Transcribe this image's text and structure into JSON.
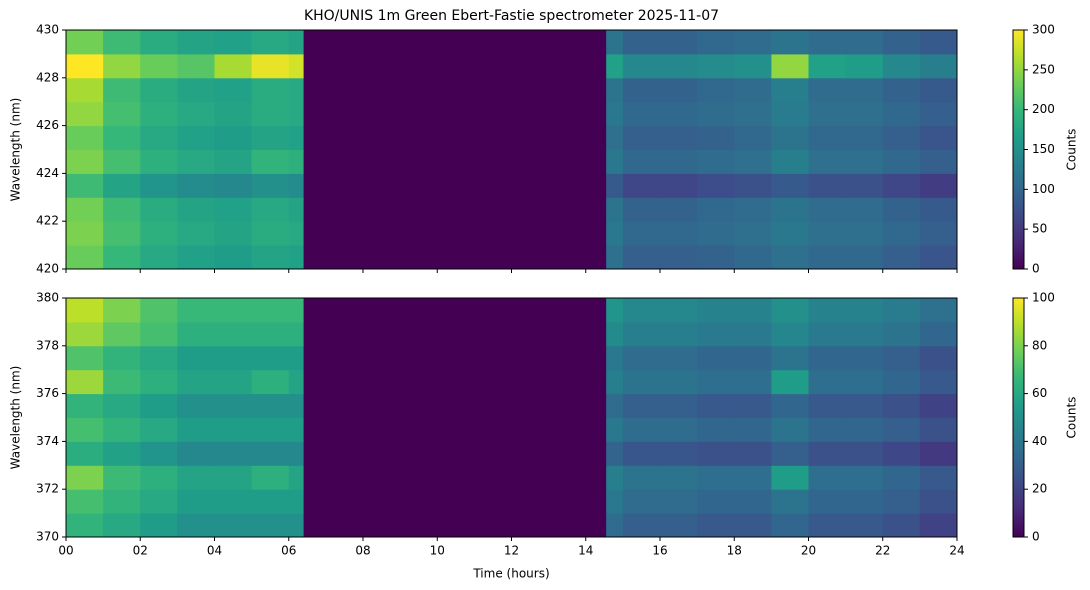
{
  "chart_data": [
    {
      "type": "heatmap",
      "title": "KHO/UNIS 1m Green Ebert-Fastie spectrometer 2025-11-07",
      "y_label": "Wavelength (nm)",
      "x_bins": [
        0,
        1,
        2,
        3,
        4,
        5,
        6,
        6.4,
        14.55,
        15,
        16,
        17,
        18,
        19,
        20,
        21,
        22,
        23,
        24
      ],
      "y_bins": [
        420,
        421,
        422,
        423,
        424,
        425,
        426,
        427,
        428,
        429,
        430
      ],
      "z": [
        [
          230,
          200,
          180,
          170,
          165,
          175,
          170,
          0,
          110,
          90,
          90,
          95,
          100,
          110,
          100,
          100,
          90,
          80
        ],
        [
          240,
          210,
          190,
          180,
          175,
          185,
          180,
          0,
          120,
          100,
          100,
          105,
          110,
          120,
          110,
          110,
          100,
          90
        ],
        [
          235,
          205,
          185,
          175,
          170,
          180,
          175,
          0,
          115,
          95,
          95,
          100,
          105,
          115,
          105,
          105,
          95,
          85
        ],
        [
          205,
          175,
          155,
          145,
          140,
          150,
          145,
          0,
          85,
          65,
          65,
          70,
          75,
          85,
          75,
          75,
          65,
          55
        ],
        [
          240,
          210,
          190,
          180,
          175,
          195,
          190,
          0,
          120,
          100,
          100,
          105,
          110,
          130,
          110,
          110,
          100,
          90
        ],
        [
          230,
          200,
          180,
          170,
          165,
          175,
          170,
          0,
          110,
          90,
          90,
          95,
          100,
          115,
          100,
          100,
          90,
          80
        ],
        [
          250,
          210,
          190,
          180,
          175,
          185,
          180,
          0,
          120,
          100,
          100,
          105,
          110,
          125,
          110,
          110,
          100,
          90
        ],
        [
          260,
          205,
          185,
          175,
          170,
          185,
          180,
          0,
          115,
          95,
          95,
          100,
          105,
          130,
          105,
          105,
          95,
          85
        ],
        [
          300,
          250,
          230,
          220,
          260,
          290,
          280,
          0,
          170,
          140,
          140,
          145,
          150,
          250,
          170,
          165,
          140,
          130
        ],
        [
          235,
          205,
          185,
          175,
          170,
          180,
          175,
          0,
          115,
          95,
          95,
          100,
          105,
          115,
          105,
          105,
          95,
          85
        ]
      ],
      "xlim": [
        0,
        24
      ],
      "xticks": [
        0,
        2,
        4,
        6,
        8,
        10,
        12,
        14,
        16,
        18,
        20,
        22,
        24
      ],
      "show_xticklabels": false,
      "ylim": [
        420,
        430
      ],
      "yticks": [
        420,
        422,
        424,
        426,
        428,
        430
      ],
      "colormap": [
        "#440154",
        "#482878",
        "#3e4989",
        "#31688e",
        "#26828e",
        "#1f9e89",
        "#35b779",
        "#6ece58",
        "#b5de2b",
        "#fde725"
      ],
      "clim": [
        0,
        300
      ],
      "cticks": [
        0,
        50,
        100,
        150,
        200,
        250,
        300
      ],
      "colorbar_label": "Counts"
    },
    {
      "type": "heatmap",
      "y_label": "Wavelength (nm)",
      "x_label": "Time (hours)",
      "x_bins": [
        0,
        1,
        2,
        3,
        4,
        5,
        6,
        6.4,
        14.55,
        15,
        16,
        17,
        18,
        19,
        20,
        21,
        22,
        23,
        24
      ],
      "y_bins": [
        370,
        371,
        372,
        373,
        374,
        375,
        376,
        377,
        378,
        379,
        380
      ],
      "z": [
        [
          65,
          60,
          55,
          50,
          50,
          50,
          50,
          0,
          35,
          30,
          30,
          28,
          28,
          33,
          28,
          28,
          25,
          20
        ],
        [
          70,
          65,
          60,
          55,
          55,
          55,
          55,
          0,
          40,
          35,
          35,
          33,
          33,
          38,
          33,
          33,
          30,
          25
        ],
        [
          80,
          68,
          63,
          58,
          58,
          63,
          58,
          0,
          43,
          38,
          38,
          36,
          36,
          55,
          36,
          36,
          33,
          28
        ],
        [
          62,
          57,
          52,
          47,
          47,
          47,
          47,
          0,
          32,
          27,
          27,
          25,
          25,
          30,
          25,
          25,
          22,
          17
        ],
        [
          70,
          65,
          60,
          55,
          55,
          55,
          55,
          0,
          40,
          35,
          35,
          33,
          33,
          38,
          33,
          33,
          30,
          25
        ],
        [
          65,
          60,
          55,
          50,
          50,
          50,
          50,
          0,
          35,
          30,
          30,
          28,
          28,
          33,
          28,
          28,
          25,
          20
        ],
        [
          85,
          68,
          63,
          58,
          58,
          63,
          58,
          0,
          43,
          38,
          38,
          36,
          36,
          55,
          36,
          36,
          33,
          28
        ],
        [
          72,
          65,
          60,
          55,
          55,
          55,
          55,
          0,
          40,
          35,
          35,
          33,
          33,
          38,
          33,
          33,
          30,
          25
        ],
        [
          85,
          75,
          70,
          63,
          63,
          63,
          63,
          0,
          48,
          43,
          43,
          41,
          41,
          46,
          41,
          41,
          38,
          33
        ],
        [
          90,
          80,
          72,
          67,
          67,
          67,
          67,
          0,
          52,
          47,
          47,
          45,
          45,
          50,
          45,
          45,
          42,
          37
        ]
      ],
      "xlim": [
        0,
        24
      ],
      "xticks": [
        {
          "value": 0,
          "label": "00"
        },
        {
          "value": 2,
          "label": "02"
        },
        {
          "value": 4,
          "label": "04"
        },
        {
          "value": 6,
          "label": "06"
        },
        {
          "value": 8,
          "label": "08"
        },
        {
          "value": 10,
          "label": "10"
        },
        {
          "value": 12,
          "label": "12"
        },
        {
          "value": 14,
          "label": "14"
        },
        {
          "value": 16,
          "label": "16"
        },
        {
          "value": 18,
          "label": "18"
        },
        {
          "value": 20,
          "label": "20"
        },
        {
          "value": 22,
          "label": "22"
        },
        {
          "value": 24,
          "label": "24"
        }
      ],
      "show_xticklabels": true,
      "ylim": [
        370,
        380
      ],
      "yticks": [
        370,
        372,
        374,
        376,
        378,
        380
      ],
      "colormap": [
        "#440154",
        "#482878",
        "#3e4989",
        "#31688e",
        "#26828e",
        "#1f9e89",
        "#35b779",
        "#6ece58",
        "#b5de2b",
        "#fde725"
      ],
      "clim": [
        0,
        100
      ],
      "cticks": [
        0,
        20,
        40,
        60,
        80,
        100
      ],
      "colorbar_label": "Counts"
    }
  ]
}
